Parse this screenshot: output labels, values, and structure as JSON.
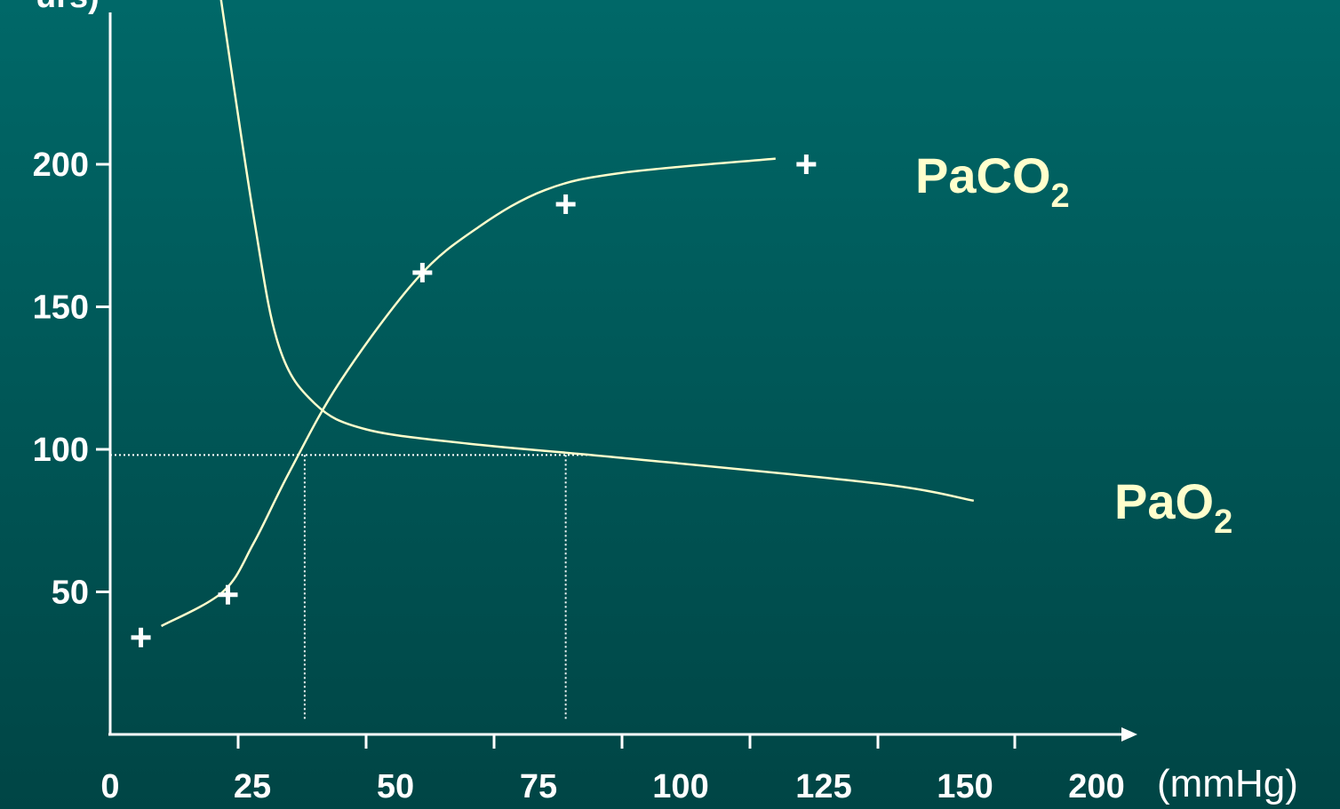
{
  "chart_data": {
    "type": "line",
    "title": "",
    "ylabel_partial": "urs)",
    "xlabel_unit": "(mmHg)",
    "y_ticks": [
      "50",
      "100",
      "150",
      "200"
    ],
    "x_ticks": [
      "0",
      "25",
      "50",
      "75",
      "100",
      "125",
      "150",
      "200"
    ],
    "series": [
      {
        "name": "PaCO",
        "subscript": "2",
        "curve": [
          [
            10,
            38
          ],
          [
            22,
            50
          ],
          [
            28,
            67
          ],
          [
            35,
            92
          ],
          [
            45,
            124
          ],
          [
            60,
            160
          ],
          [
            72,
            178
          ],
          [
            85,
            191
          ],
          [
            100,
            197
          ],
          [
            130,
            202
          ]
        ],
        "markers": [
          [
            6,
            34
          ],
          [
            23,
            49
          ],
          [
            61,
            162
          ],
          [
            89,
            186
          ],
          [
            136,
            200
          ]
        ]
      },
      {
        "name": "PaO",
        "subscript": "2",
        "curve": [
          [
            20,
            278
          ],
          [
            28,
            182
          ],
          [
            33,
            136
          ],
          [
            40,
            116
          ],
          [
            50,
            107
          ],
          [
            70,
            102
          ],
          [
            100,
            97
          ],
          [
            150,
            88
          ],
          [
            185,
            82
          ]
        ]
      }
    ],
    "reference_lines": {
      "y": 98,
      "x": [
        38,
        89
      ]
    },
    "colors": {
      "background_top": "#006868",
      "background_bottom": "#004545",
      "axis": "#ffffff",
      "curve": "#ffffcc",
      "label": "#ffffcc",
      "tick_text": "#ffffff"
    }
  }
}
